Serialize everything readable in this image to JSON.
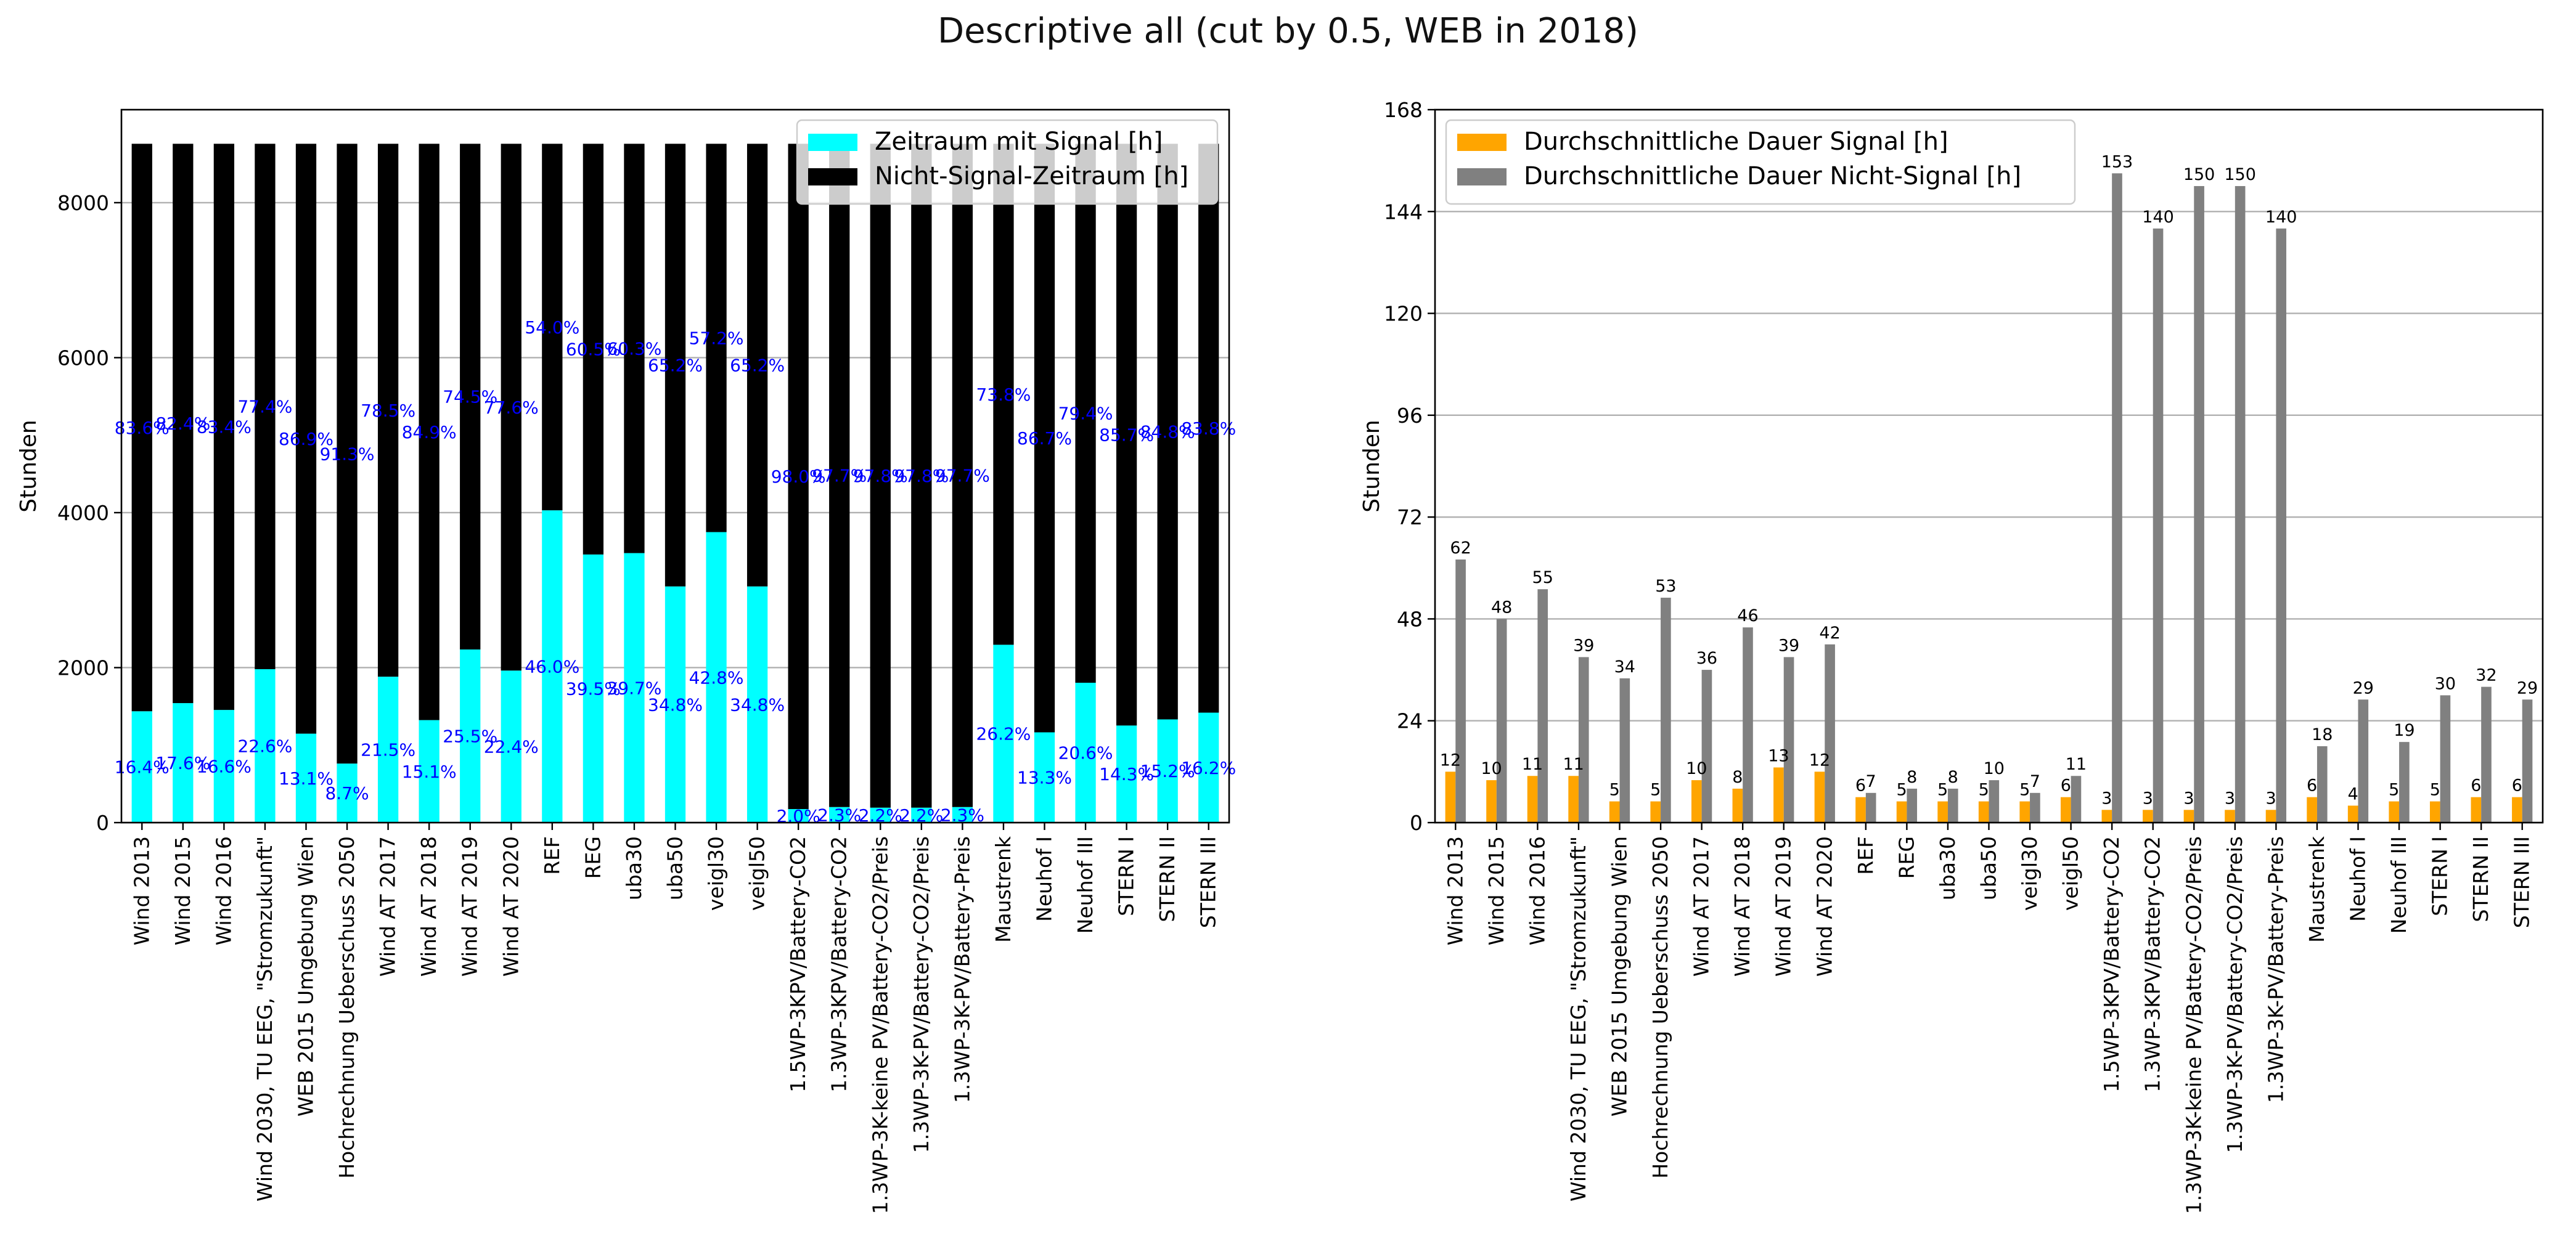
{
  "figure": {
    "suptitle": "Descriptive all (cut by 0.5, WEB in 2018)"
  },
  "colors": {
    "signal_hours": "#00ffff",
    "nonsignal_hours": "#000000",
    "pct_labels": "#0000ff",
    "avg_signal": "#ffa500",
    "avg_nonsignal": "#808080",
    "grid": "#b0b0b0"
  },
  "chart_data": [
    {
      "type": "bar",
      "stacked": true,
      "ylabel": "Stunden",
      "xlabel": "",
      "ylim": [
        0,
        9200
      ],
      "yticks": [
        0,
        2000,
        4000,
        6000,
        8000
      ],
      "grid": "horizontal",
      "legend_position": "top-right",
      "categories": [
        "Wind 2013",
        "Wind 2015",
        "Wind 2016",
        "Wind 2030, TU EEG, \"Stromzukunft\"",
        "WEB 2015 Umgebung Wien",
        "Hochrechnung Ueberschuss 2050",
        "Wind AT 2017",
        "Wind AT 2018",
        "Wind AT 2019",
        "Wind AT 2020",
        "REF",
        "REG",
        "uba30",
        "uba50",
        "veigl30",
        "veigl50",
        "1.5WP-3KPV/Battery-CO2",
        "1.3WP-3KPV/Battery-CO2",
        "1.3WP-3K-keine PV/Battery-CO2/Preis",
        "1.3WP-3K-PV/Battery-CO2/Preis",
        "1.3WP-3K-PV/Battery-Preis",
        "Maustrenk",
        "Neuhof I",
        "Neuhof III",
        "STERN I",
        "STERN II",
        "STERN III"
      ],
      "series": [
        {
          "name": "Zeitraum mit Signal [h]",
          "values": [
            1437,
            1542,
            1454,
            1980,
            1148,
            762,
            1883,
            1323,
            2234,
            1962,
            4030,
            3460,
            3478,
            3048,
            3749,
            3048,
            175,
            201,
            193,
            193,
            201,
            2295,
            1165,
            1805,
            1253,
            1332,
            1419
          ]
        },
        {
          "name": "Nicht-Signal-Zeitraum [h]",
          "values": [
            7323,
            7218,
            7306,
            6780,
            7612,
            7998,
            6877,
            7437,
            6526,
            6798,
            4730,
            5300,
            5282,
            5712,
            5011,
            5712,
            8585,
            8559,
            8567,
            8567,
            8559,
            6465,
            7595,
            6955,
            7507,
            7428,
            7341
          ]
        }
      ],
      "signal_pct_labels": [
        "16.4%",
        "17.6%",
        "16.6%",
        "22.6%",
        "13.1%",
        "8.7%",
        "21.5%",
        "15.1%",
        "25.5%",
        "22.4%",
        "46.0%",
        "39.5%",
        "39.7%",
        "34.8%",
        "42.8%",
        "34.8%",
        "2.0%",
        "2.3%",
        "2.2%",
        "2.2%",
        "2.3%",
        "26.2%",
        "13.3%",
        "20.6%",
        "14.3%",
        "15.2%",
        "16.2%"
      ],
      "nonsignal_pct_labels": [
        "83.6%",
        "82.4%",
        "83.4%",
        "77.4%",
        "86.9%",
        "91.3%",
        "78.5%",
        "84.9%",
        "74.5%",
        "77.6%",
        "54.0%",
        "60.5%",
        "60.3%",
        "65.2%",
        "57.2%",
        "65.2%",
        "98.0%",
        "97.7%",
        "97.8%",
        "97.8%",
        "97.7%",
        "73.8%",
        "86.7%",
        "79.4%",
        "85.7%",
        "84.8%",
        "83.8%"
      ]
    },
    {
      "type": "bar",
      "stacked": false,
      "ylabel": "Stunden",
      "xlabel": "",
      "ylim": [
        0,
        168
      ],
      "yticks": [
        0,
        24,
        48,
        72,
        96,
        120,
        144,
        168
      ],
      "grid": "horizontal",
      "legend_position": "top-left",
      "categories": [
        "Wind 2013",
        "Wind 2015",
        "Wind 2016",
        "Wind 2030, TU EEG, \"Stromzukunft\"",
        "WEB 2015 Umgebung Wien",
        "Hochrechnung Ueberschuss 2050",
        "Wind AT 2017",
        "Wind AT 2018",
        "Wind AT 2019",
        "Wind AT 2020",
        "REF",
        "REG",
        "uba30",
        "uba50",
        "veigl30",
        "veigl50",
        "1.5WP-3KPV/Battery-CO2",
        "1.3WP-3KPV/Battery-CO2",
        "1.3WP-3K-keine PV/Battery-CO2/Preis",
        "1.3WP-3K-PV/Battery-CO2/Preis",
        "1.3WP-3K-PV/Battery-Preis",
        "Maustrenk",
        "Neuhof I",
        "Neuhof III",
        "STERN I",
        "STERN II",
        "STERN III"
      ],
      "series": [
        {
          "name": "Durchschnittliche Dauer Signal [h]",
          "values": [
            12,
            10,
            11,
            11,
            5,
            5,
            10,
            8,
            13,
            12,
            6,
            5,
            5,
            5,
            5,
            6,
            3,
            3,
            3,
            3,
            3,
            6,
            4,
            5,
            5,
            6,
            6
          ]
        },
        {
          "name": "Durchschnittliche Dauer Nicht-Signal [h]",
          "values": [
            62,
            48,
            55,
            39,
            34,
            53,
            36,
            46,
            39,
            42,
            7,
            8,
            8,
            10,
            7,
            11,
            153,
            140,
            150,
            150,
            140,
            18,
            29,
            19,
            30,
            32,
            29
          ]
        }
      ]
    }
  ]
}
